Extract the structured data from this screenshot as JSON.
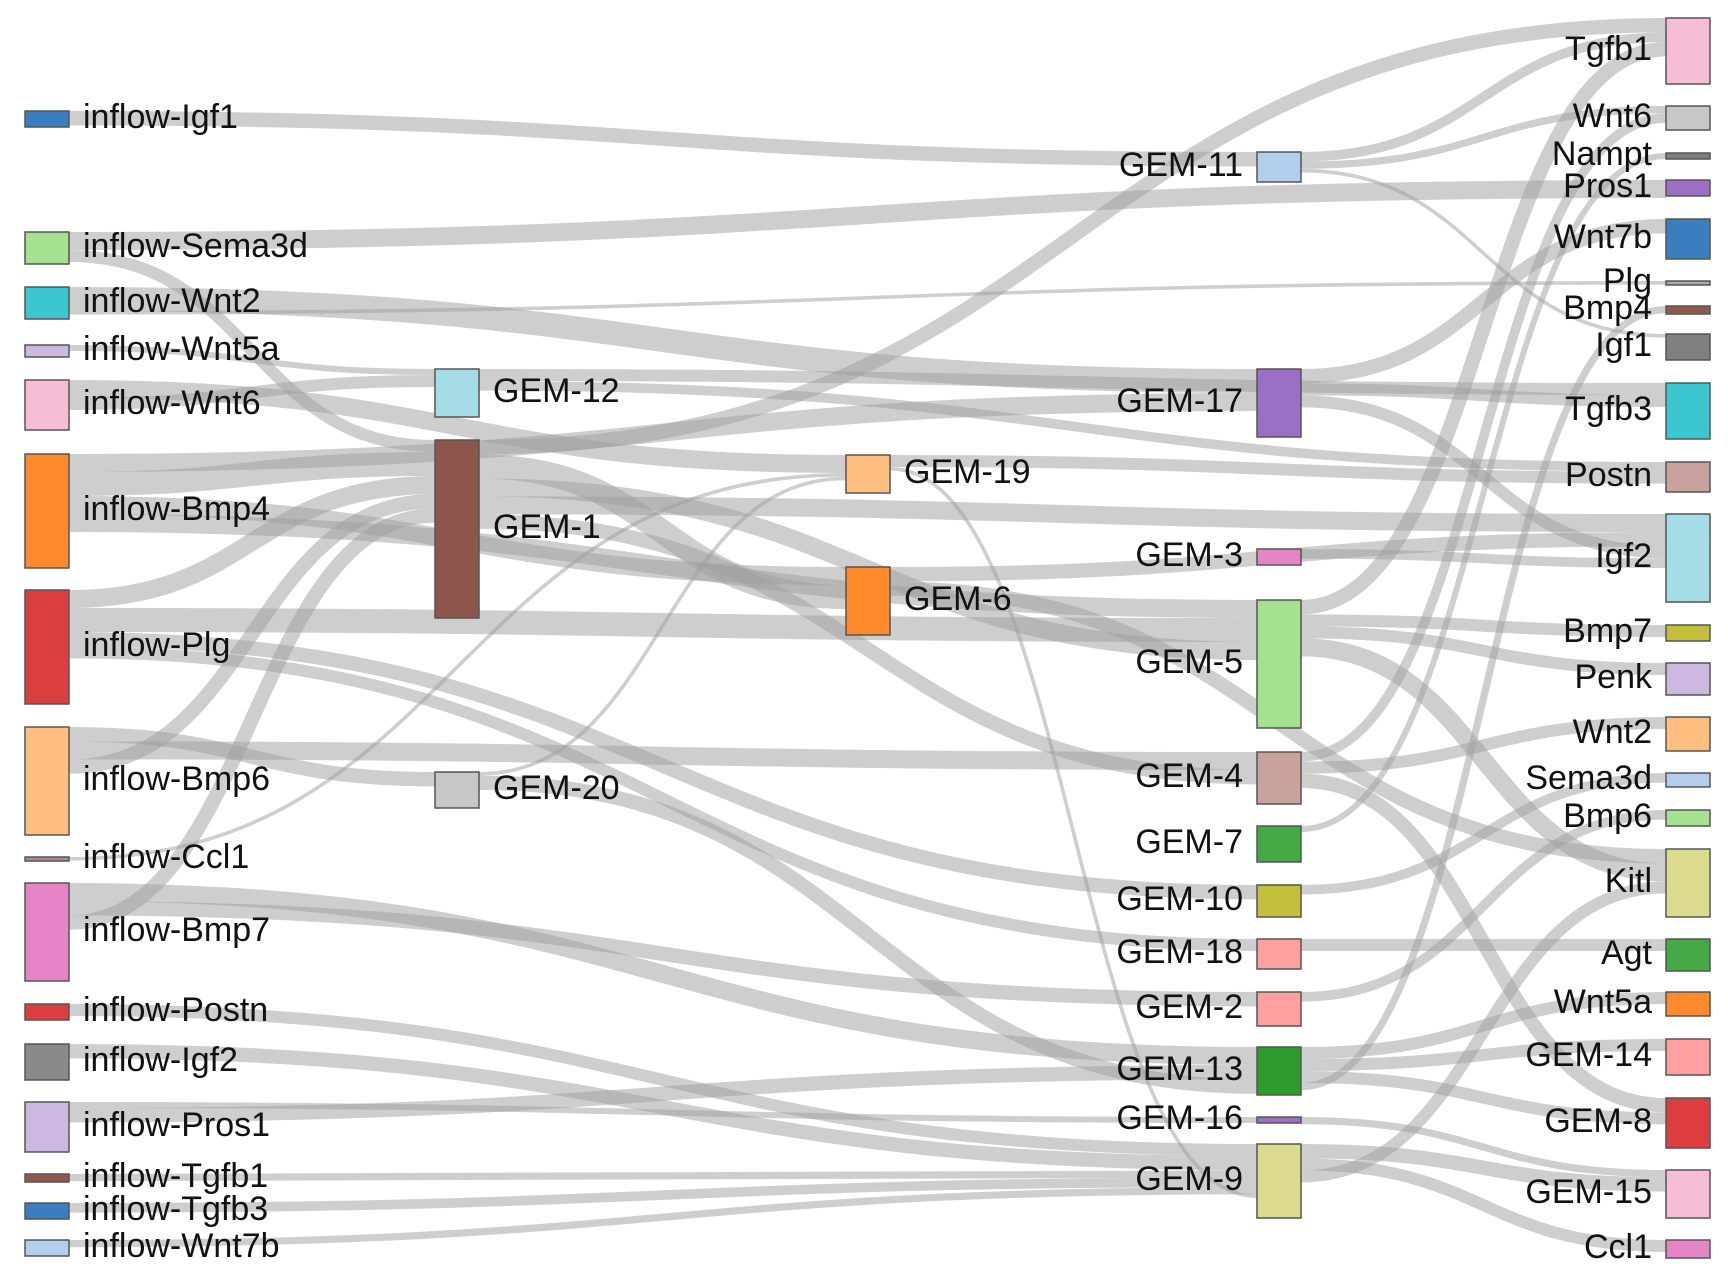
{
  "chart_data": {
    "type": "sankey",
    "nodes": [
      {
        "id": "inflow-Igf1",
        "label": "inflow-Igf1",
        "column": 0,
        "color": "#3a7ebf"
      },
      {
        "id": "inflow-Sema3d",
        "label": "inflow-Sema3d",
        "column": 0,
        "color": "#a6e190"
      },
      {
        "id": "inflow-Wnt2",
        "label": "inflow-Wnt2",
        "column": 0,
        "color": "#3cc6d0"
      },
      {
        "id": "inflow-Wnt5a",
        "label": "inflow-Wnt5a",
        "column": 0,
        "color": "#cdb8df"
      },
      {
        "id": "inflow-Wnt6",
        "label": "inflow-Wnt6",
        "column": 0,
        "color": "#f7bcd6"
      },
      {
        "id": "inflow-Bmp4",
        "label": "inflow-Bmp4",
        "column": 0,
        "color": "#ff8a2c"
      },
      {
        "id": "inflow-Plg",
        "label": "inflow-Plg",
        "column": 0,
        "color": "#dc3d3f"
      },
      {
        "id": "inflow-Bmp6",
        "label": "inflow-Bmp6",
        "column": 0,
        "color": "#ffbf80"
      },
      {
        "id": "inflow-Ccl1",
        "label": "inflow-Ccl1",
        "column": 0,
        "color": "#b08b87"
      },
      {
        "id": "inflow-Bmp7",
        "label": "inflow-Bmp7",
        "column": 0,
        "color": "#e585c6"
      },
      {
        "id": "inflow-Postn",
        "label": "inflow-Postn",
        "column": 0,
        "color": "#dc3d3f"
      },
      {
        "id": "inflow-Igf2",
        "label": "inflow-Igf2",
        "column": 0,
        "color": "#8a8a8a"
      },
      {
        "id": "inflow-Pros1",
        "label": "inflow-Pros1",
        "column": 0,
        "color": "#cdb8df"
      },
      {
        "id": "inflow-Tgfb1",
        "label": "inflow-Tgfb1",
        "column": 0,
        "color": "#925a4f"
      },
      {
        "id": "inflow-Tgfb3",
        "label": "inflow-Tgfb3",
        "column": 0,
        "color": "#3a7ebf"
      },
      {
        "id": "inflow-Wnt7b",
        "label": "inflow-Wnt7b",
        "column": 0,
        "color": "#b3cdec"
      },
      {
        "id": "GEM-12",
        "label": "GEM-12",
        "column": 1,
        "color": "#a5dde6"
      },
      {
        "id": "GEM-1",
        "label": "GEM-1",
        "column": 1,
        "color": "#8c564b"
      },
      {
        "id": "GEM-20",
        "label": "GEM-20",
        "column": 1,
        "color": "#c7c7c7"
      },
      {
        "id": "GEM-19",
        "label": "GEM-19",
        "column": 2,
        "color": "#ffbf80"
      },
      {
        "id": "GEM-6",
        "label": "GEM-6",
        "column": 2,
        "color": "#ff8a2c"
      },
      {
        "id": "GEM-11",
        "label": "GEM-11",
        "column": 3,
        "color": "#b3cdec"
      },
      {
        "id": "GEM-17",
        "label": "GEM-17",
        "column": 3,
        "color": "#9a6fc4"
      },
      {
        "id": "GEM-3",
        "label": "GEM-3",
        "column": 3,
        "color": "#e585c6"
      },
      {
        "id": "GEM-5",
        "label": "GEM-5",
        "column": 3,
        "color": "#a6e190"
      },
      {
        "id": "GEM-4",
        "label": "GEM-4",
        "column": 3,
        "color": "#c9a39b"
      },
      {
        "id": "GEM-7",
        "label": "GEM-7",
        "column": 3,
        "color": "#44a845"
      },
      {
        "id": "GEM-10",
        "label": "GEM-10",
        "column": 3,
        "color": "#c2c03a"
      },
      {
        "id": "GEM-18",
        "label": "GEM-18",
        "column": 3,
        "color": "#ffa0a0"
      },
      {
        "id": "GEM-2",
        "label": "GEM-2",
        "column": 3,
        "color": "#ffa0a0"
      },
      {
        "id": "GEM-13",
        "label": "GEM-13",
        "column": 3,
        "color": "#2e9a2e"
      },
      {
        "id": "GEM-16",
        "label": "GEM-16",
        "column": 3,
        "color": "#9a6fc4"
      },
      {
        "id": "GEM-9",
        "label": "GEM-9",
        "column": 3,
        "color": "#dbdb8d"
      },
      {
        "id": "Tgfb1",
        "label": "Tgfb1",
        "column": 4,
        "color": "#f7bcd6"
      },
      {
        "id": "Wnt6",
        "label": "Wnt6",
        "column": 4,
        "color": "#c7c7c7"
      },
      {
        "id": "Nampt",
        "label": "Nampt",
        "column": 4,
        "color": "#7f7f7f"
      },
      {
        "id": "Pros1",
        "label": "Pros1",
        "column": 4,
        "color": "#9a6fc4"
      },
      {
        "id": "Wnt7b",
        "label": "Wnt7b",
        "column": 4,
        "color": "#3a7ebf"
      },
      {
        "id": "Plg",
        "label": "Plg",
        "column": 4,
        "color": "#aaaaaa"
      },
      {
        "id": "Bmp4",
        "label": "Bmp4",
        "column": 4,
        "color": "#925a4f"
      },
      {
        "id": "Igf1",
        "label": "Igf1",
        "column": 4,
        "color": "#808080"
      },
      {
        "id": "Tgfb3",
        "label": "Tgfb3",
        "column": 4,
        "color": "#3cc6d0"
      },
      {
        "id": "Postn",
        "label": "Postn",
        "column": 4,
        "color": "#c9a39b"
      },
      {
        "id": "Igf2",
        "label": "Igf2",
        "column": 4,
        "color": "#a5dde6"
      },
      {
        "id": "Bmp7",
        "label": "Bmp7",
        "column": 4,
        "color": "#c2c03a"
      },
      {
        "id": "Penk",
        "label": "Penk",
        "column": 4,
        "color": "#cdb8df"
      },
      {
        "id": "Wnt2",
        "label": "Wnt2",
        "column": 4,
        "color": "#ffbf80"
      },
      {
        "id": "Sema3d",
        "label": "Sema3d",
        "column": 4,
        "color": "#b3cdec"
      },
      {
        "id": "Bmp6",
        "label": "Bmp6",
        "column": 4,
        "color": "#a6e190"
      },
      {
        "id": "Kitl",
        "label": "Kitl",
        "column": 4,
        "color": "#dbdb8d"
      },
      {
        "id": "Agt",
        "label": "Agt",
        "column": 4,
        "color": "#44a845"
      },
      {
        "id": "Wnt5a",
        "label": "Wnt5a",
        "column": 4,
        "color": "#ff8a2c"
      },
      {
        "id": "GEM-14",
        "label": "GEM-14",
        "column": 4,
        "color": "#ffa0a0"
      },
      {
        "id": "GEM-8",
        "label": "GEM-8",
        "column": 4,
        "color": "#dc3d3f"
      },
      {
        "id": "GEM-15",
        "label": "GEM-15",
        "column": 4,
        "color": "#f7bcd6"
      },
      {
        "id": "Ccl1",
        "label": "Ccl1",
        "column": 4,
        "color": "#e585c6"
      }
    ],
    "links": [
      {
        "source": "inflow-Igf1",
        "target": "GEM-11",
        "value": 1.2
      },
      {
        "source": "inflow-Sema3d",
        "target": "Pros1",
        "value": 1.5
      },
      {
        "source": "inflow-Sema3d",
        "target": "GEM-1",
        "value": 1.0
      },
      {
        "source": "inflow-Wnt2",
        "target": "GEM-17",
        "value": 2.0,
        "shade": "dark"
      },
      {
        "source": "inflow-Wnt2",
        "target": "Plg",
        "value": 0.3
      },
      {
        "source": "inflow-Wnt5a",
        "target": "GEM-12",
        "value": 0.5
      },
      {
        "source": "inflow-Wnt6",
        "target": "GEM-19",
        "value": 1.5
      },
      {
        "source": "inflow-Wnt6",
        "target": "GEM-12",
        "value": 1.0
      },
      {
        "source": "inflow-Bmp4",
        "target": "GEM-17",
        "value": 1.5
      },
      {
        "source": "inflow-Bmp4",
        "target": "GEM-1",
        "value": 2.0
      },
      {
        "source": "inflow-Bmp4",
        "target": "GEM-6",
        "value": 1.5,
        "shade": "dark"
      },
      {
        "source": "inflow-Bmp4",
        "target": "GEM-5",
        "value": 1.5
      },
      {
        "source": "inflow-Plg",
        "target": "GEM-1",
        "value": 1.5
      },
      {
        "source": "inflow-Plg",
        "target": "GEM-5",
        "value": 2.0
      },
      {
        "source": "inflow-Plg",
        "target": "GEM-10",
        "value": 1.2
      },
      {
        "source": "inflow-Plg",
        "target": "GEM-18",
        "value": 1.0
      },
      {
        "source": "inflow-Bmp6",
        "target": "GEM-20",
        "value": 1.2,
        "shade": "dark"
      },
      {
        "source": "inflow-Bmp6",
        "target": "GEM-4",
        "value": 1.5
      },
      {
        "source": "inflow-Bmp6",
        "target": "GEM-1",
        "value": 1.2
      },
      {
        "source": "inflow-Ccl1",
        "target": "GEM-19",
        "value": 0.3
      },
      {
        "source": "inflow-Bmp7",
        "target": "GEM-13",
        "value": 1.5
      },
      {
        "source": "inflow-Bmp7",
        "target": "GEM-2",
        "value": 1.2
      },
      {
        "source": "inflow-Bmp7",
        "target": "GEM-1",
        "value": 1.2
      },
      {
        "source": "inflow-Postn",
        "target": "GEM-9",
        "value": 1.0
      },
      {
        "source": "inflow-Igf2",
        "target": "GEM-9",
        "value": 1.2
      },
      {
        "source": "inflow-Pros1",
        "target": "GEM-16",
        "value": 0.5
      },
      {
        "source": "inflow-Pros1",
        "target": "GEM-13",
        "value": 1.2
      },
      {
        "source": "inflow-Tgfb1",
        "target": "GEM-9",
        "value": 0.6
      },
      {
        "source": "inflow-Tgfb3",
        "target": "GEM-9",
        "value": 0.8
      },
      {
        "source": "inflow-Wnt7b",
        "target": "GEM-9",
        "value": 0.6
      },
      {
        "source": "GEM-12",
        "target": "Tgfb3",
        "value": 1.0
      },
      {
        "source": "GEM-12",
        "target": "Postn",
        "value": 0.8
      },
      {
        "source": "GEM-1",
        "target": "Tgfb1",
        "value": 1.2
      },
      {
        "source": "GEM-1",
        "target": "GEM-6",
        "value": 2.0,
        "shade": "dark"
      },
      {
        "source": "GEM-1",
        "target": "GEM-5",
        "value": 1.5
      },
      {
        "source": "GEM-1",
        "target": "Igf2",
        "value": 1.5
      },
      {
        "source": "GEM-1",
        "target": "GEM-4",
        "value": 1.2
      },
      {
        "source": "GEM-20",
        "target": "GEM-19",
        "value": 0.3
      },
      {
        "source": "GEM-20",
        "target": "GEM-13",
        "value": 1.2
      },
      {
        "source": "GEM-19",
        "target": "Postn",
        "value": 1.0
      },
      {
        "source": "GEM-19",
        "target": "GEM-9",
        "value": 0.3
      },
      {
        "source": "GEM-6",
        "target": "Igf2",
        "value": 1.2
      },
      {
        "source": "GEM-6",
        "target": "Kitl",
        "value": 1.2
      },
      {
        "source": "GEM-11",
        "target": "Tgfb1",
        "value": 0.8
      },
      {
        "source": "GEM-11",
        "target": "Wnt6",
        "value": 0.6
      },
      {
        "source": "GEM-11",
        "target": "Igf1",
        "value": 0.3
      },
      {
        "source": "GEM-17",
        "target": "Wnt7b",
        "value": 1.2
      },
      {
        "source": "GEM-17",
        "target": "Tgfb3",
        "value": 1.0
      },
      {
        "source": "GEM-17",
        "target": "Igf2",
        "value": 1.0
      },
      {
        "source": "GEM-3",
        "target": "Igf2",
        "value": 0.8
      },
      {
        "source": "GEM-5",
        "target": "Tgfb1",
        "value": 1.2
      },
      {
        "source": "GEM-5",
        "target": "Bmp7",
        "value": 1.0
      },
      {
        "source": "GEM-5",
        "target": "Penk",
        "value": 1.0
      },
      {
        "source": "GEM-5",
        "target": "Kitl",
        "value": 1.5
      },
      {
        "source": "GEM-4",
        "target": "Wnt6",
        "value": 0.8
      },
      {
        "source": "GEM-4",
        "target": "Wnt2",
        "value": 1.0
      },
      {
        "source": "GEM-4",
        "target": "GEM-8",
        "value": 1.2
      },
      {
        "source": "GEM-7",
        "target": "Nampt",
        "value": 0.5
      },
      {
        "source": "GEM-10",
        "target": "Sema3d",
        "value": 0.8
      },
      {
        "source": "GEM-18",
        "target": "Agt",
        "value": 1.0
      },
      {
        "source": "GEM-2",
        "target": "Bmp6",
        "value": 0.8
      },
      {
        "source": "GEM-13",
        "target": "Wnt5a",
        "value": 1.0
      },
      {
        "source": "GEM-13",
        "target": "GEM-14",
        "value": 1.0
      },
      {
        "source": "GEM-13",
        "target": "GEM-8",
        "value": 1.0
      },
      {
        "source": "GEM-13",
        "target": "Bmp4",
        "value": 0.6
      },
      {
        "source": "GEM-16",
        "target": "GEM-15",
        "value": 0.6
      },
      {
        "source": "GEM-9",
        "target": "GEM-15",
        "value": 1.2
      },
      {
        "source": "GEM-9",
        "target": "Ccl1",
        "value": 1.0
      },
      {
        "source": "GEM-9",
        "target": "Kitl",
        "value": 1.0
      }
    ]
  }
}
